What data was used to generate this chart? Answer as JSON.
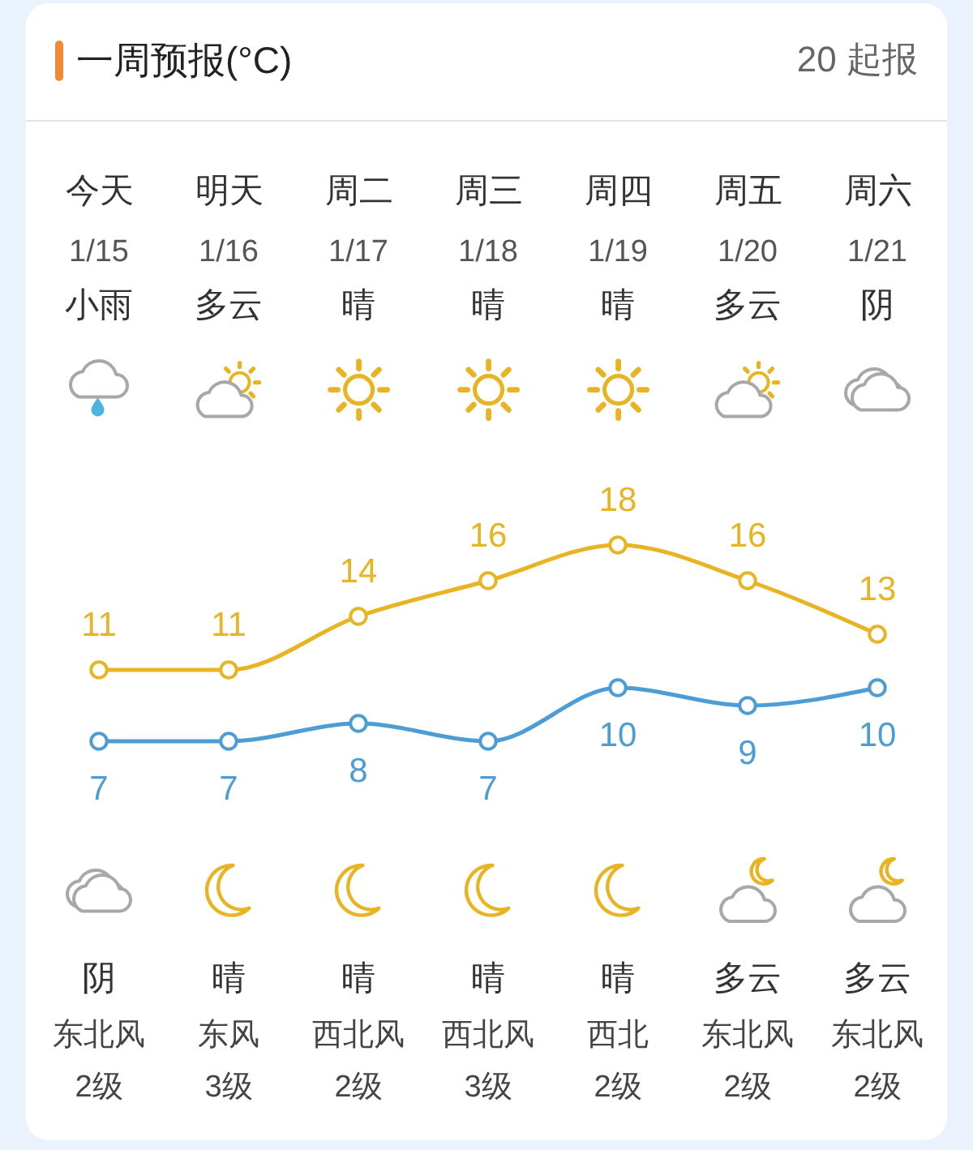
{
  "chart_data": {
    "type": "line",
    "title": "一周预报(°C)",
    "subtitle": "20 起报",
    "categories": [
      "今天",
      "明天",
      "周二",
      "周三",
      "周四",
      "周五",
      "周六"
    ],
    "series": [
      {
        "color": "#e9b423",
        "values": [
          11,
          11,
          14,
          16,
          18,
          16,
          13
        ]
      },
      {
        "color": "#4d9dd5",
        "values": [
          7,
          7,
          8,
          7,
          10,
          9,
          10
        ]
      }
    ],
    "data_labels": true,
    "marker": "circle",
    "line_style": "solid",
    "tick_labels": "x",
    "annotations": [
      "1/15",
      "1/16",
      "1/17",
      "1/18",
      "1/19",
      "1/20",
      "1/21",
      "小雨",
      "多云",
      "晴",
      "晴",
      "晴",
      "多云",
      "阴",
      "阴",
      "晴",
      "晴",
      "晴",
      "晴",
      "多云",
      "多云",
      "东北风",
      "东风",
      "西北风",
      "西北风",
      "西北",
      "东北风",
      "东北风",
      "2级",
      "3级",
      "2级",
      "3级",
      "2级",
      "2级",
      "2级"
    ]
  }
}
